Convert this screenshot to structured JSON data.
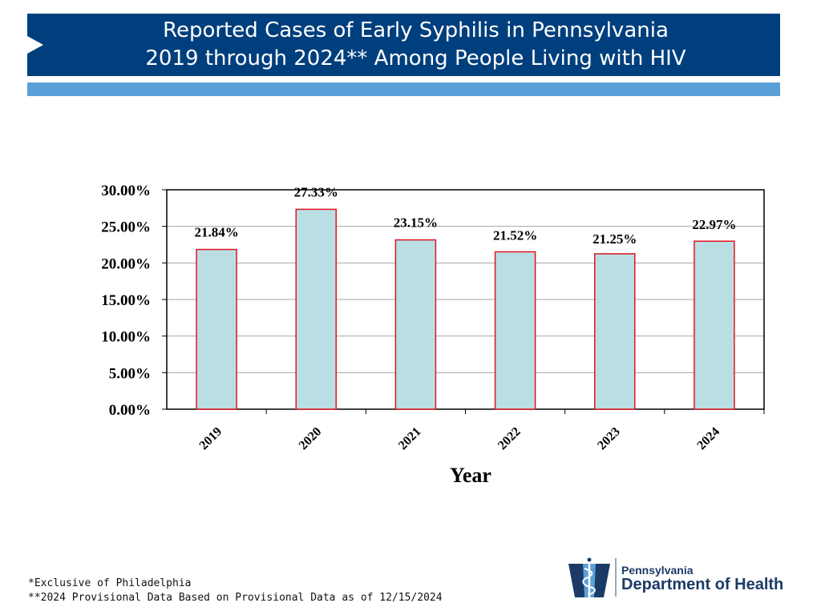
{
  "header": {
    "title_line1": "Reported Cases of Early Syphilis in Pennsylvania",
    "title_line2": "2019 through 2024** Among People Living with HIV"
  },
  "chart_data": {
    "type": "bar",
    "title": "Reported Cases of Early Syphilis in Pennsylvania 2019 through 2024** Among People Living with HIV",
    "xlabel": "Year",
    "ylabel": "",
    "categories": [
      "2019",
      "2020",
      "2021",
      "2022",
      "2023",
      "2024"
    ],
    "values": [
      21.84,
      27.33,
      23.15,
      21.52,
      21.25,
      22.97
    ],
    "data_labels": [
      "21.84%",
      "27.33%",
      "23.15%",
      "21.52%",
      "21.25%",
      "22.97%"
    ],
    "ylim": [
      0,
      30
    ],
    "yticks": [
      0,
      5,
      10,
      15,
      20,
      25,
      30
    ],
    "ytick_labels": [
      "0.00%",
      "5.00%",
      "10.00%",
      "15.00%",
      "20.00%",
      "25.00%",
      "30.00%"
    ],
    "grid": true,
    "legend": "none"
  },
  "colors": {
    "banner": "#003f7d",
    "accent": "#5aa0d8",
    "bar_fill": "#b9dfe4",
    "bar_stroke": "#e0141e",
    "grid": "#a6a6a6",
    "axis": "#000000"
  },
  "footnotes": [
    "*Exclusive of Philadelphia",
    "**2024 Provisional Data Based on Provisional Data as of 12/15/2024"
  ],
  "logo": {
    "icon": "keystone-caduceus-icon",
    "state": "Pennsylvania",
    "department": "Department of Health"
  }
}
